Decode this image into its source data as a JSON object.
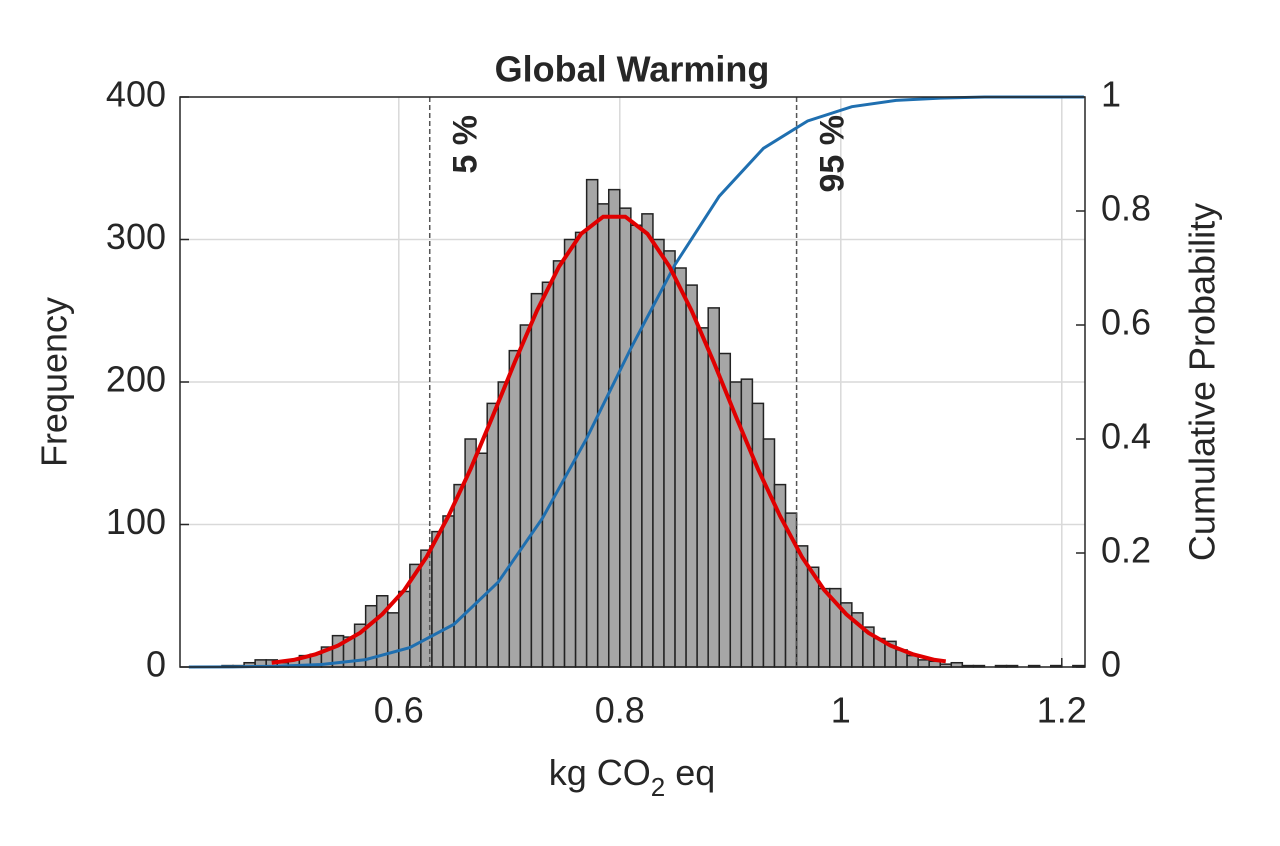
{
  "chart_data": {
    "type": "histogram",
    "title": "Global Warming",
    "xlabel": [
      "kg CO",
      "2",
      " eq"
    ],
    "ylabel": "Frequency",
    "y2label": "Cumulative Probability",
    "bins": [
      0.41,
      0.42,
      0.43,
      0.44,
      0.45,
      0.46,
      0.47,
      0.48,
      0.49,
      0.5,
      0.51,
      0.52,
      0.53,
      0.54,
      0.55,
      0.56,
      0.57,
      0.58,
      0.59,
      0.6,
      0.61,
      0.62,
      0.63,
      0.64,
      0.65,
      0.66,
      0.67,
      0.68,
      0.69,
      0.7,
      0.71,
      0.72,
      0.73,
      0.74,
      0.75,
      0.76,
      0.77,
      0.78,
      0.79,
      0.8,
      0.81,
      0.82,
      0.83,
      0.84,
      0.85,
      0.86,
      0.87,
      0.88,
      0.89,
      0.9,
      0.91,
      0.92,
      0.93,
      0.94,
      0.95,
      0.96,
      0.97,
      0.98,
      0.99,
      1.0,
      1.01,
      1.02,
      1.03,
      1.04,
      1.05,
      1.06,
      1.07,
      1.08,
      1.09,
      1.1,
      1.11,
      1.12,
      1.13,
      1.14,
      1.15,
      1.16,
      1.17,
      1.18,
      1.19,
      1.2,
      1.21,
      1.22
    ],
    "counts": [
      0,
      0,
      0,
      1,
      1,
      3,
      5,
      5,
      3,
      5,
      8,
      9,
      14,
      22,
      21,
      30,
      43,
      50,
      38,
      53,
      72,
      82,
      95,
      106,
      128,
      160,
      150,
      185,
      200,
      222,
      240,
      262,
      270,
      285,
      300,
      305,
      342,
      325,
      335,
      322,
      310,
      318,
      300,
      292,
      280,
      268,
      238,
      252,
      220,
      200,
      202,
      185,
      160,
      128,
      108,
      85,
      70,
      55,
      55,
      45,
      38,
      28,
      20,
      18,
      12,
      8,
      5,
      4,
      2,
      3,
      1,
      1,
      0,
      1,
      1,
      0,
      1,
      0,
      1,
      0,
      1
    ],
    "color": "#a6a6a6",
    "edge_color": "#222222",
    "fit": {
      "color": "#e00000",
      "x": [
        0.485,
        0.505,
        0.525,
        0.545,
        0.565,
        0.585,
        0.605,
        0.625,
        0.645,
        0.665,
        0.685,
        0.705,
        0.725,
        0.745,
        0.765,
        0.785,
        0.805,
        0.825,
        0.845,
        0.865,
        0.885,
        0.905,
        0.925,
        0.945,
        0.965,
        0.985,
        1.005,
        1.025,
        1.045,
        1.065,
        1.085,
        1.095
      ],
      "values": [
        3,
        5,
        9,
        15,
        24,
        37,
        54,
        77,
        106,
        139,
        176,
        214,
        250,
        281,
        304,
        316,
        316,
        304,
        281,
        250,
        214,
        176,
        139,
        106,
        77,
        54,
        37,
        24,
        15,
        9,
        5,
        4
      ]
    },
    "cdf": {
      "color": "#1f6fb0",
      "axis": "y2",
      "x": [
        0.41,
        0.45,
        0.49,
        0.53,
        0.57,
        0.61,
        0.65,
        0.69,
        0.73,
        0.77,
        0.81,
        0.85,
        0.89,
        0.93,
        0.97,
        1.01,
        1.05,
        1.09,
        1.13,
        1.22
      ],
      "values": [
        0.0001,
        0.0003,
        0.0013,
        0.0044,
        0.013,
        0.034,
        0.075,
        0.149,
        0.261,
        0.401,
        0.559,
        0.706,
        0.826,
        0.91,
        0.958,
        0.983,
        0.994,
        0.998,
        1,
        1
      ]
    },
    "percentile_lines": [
      {
        "x": 0.628,
        "label": "5 %"
      },
      {
        "x": 0.96,
        "label": "95 %"
      }
    ],
    "xlim": [
      0.402,
      1.221
    ],
    "xticks": [
      0.6,
      0.8,
      1,
      1.2
    ],
    "ylim": [
      0,
      400
    ],
    "yticks": [
      0,
      100,
      200,
      300,
      400
    ],
    "y2lim": [
      0,
      1
    ],
    "y2ticks": [
      0,
      0.2,
      0.4,
      0.6,
      0.8,
      1
    ],
    "grid": true
  }
}
